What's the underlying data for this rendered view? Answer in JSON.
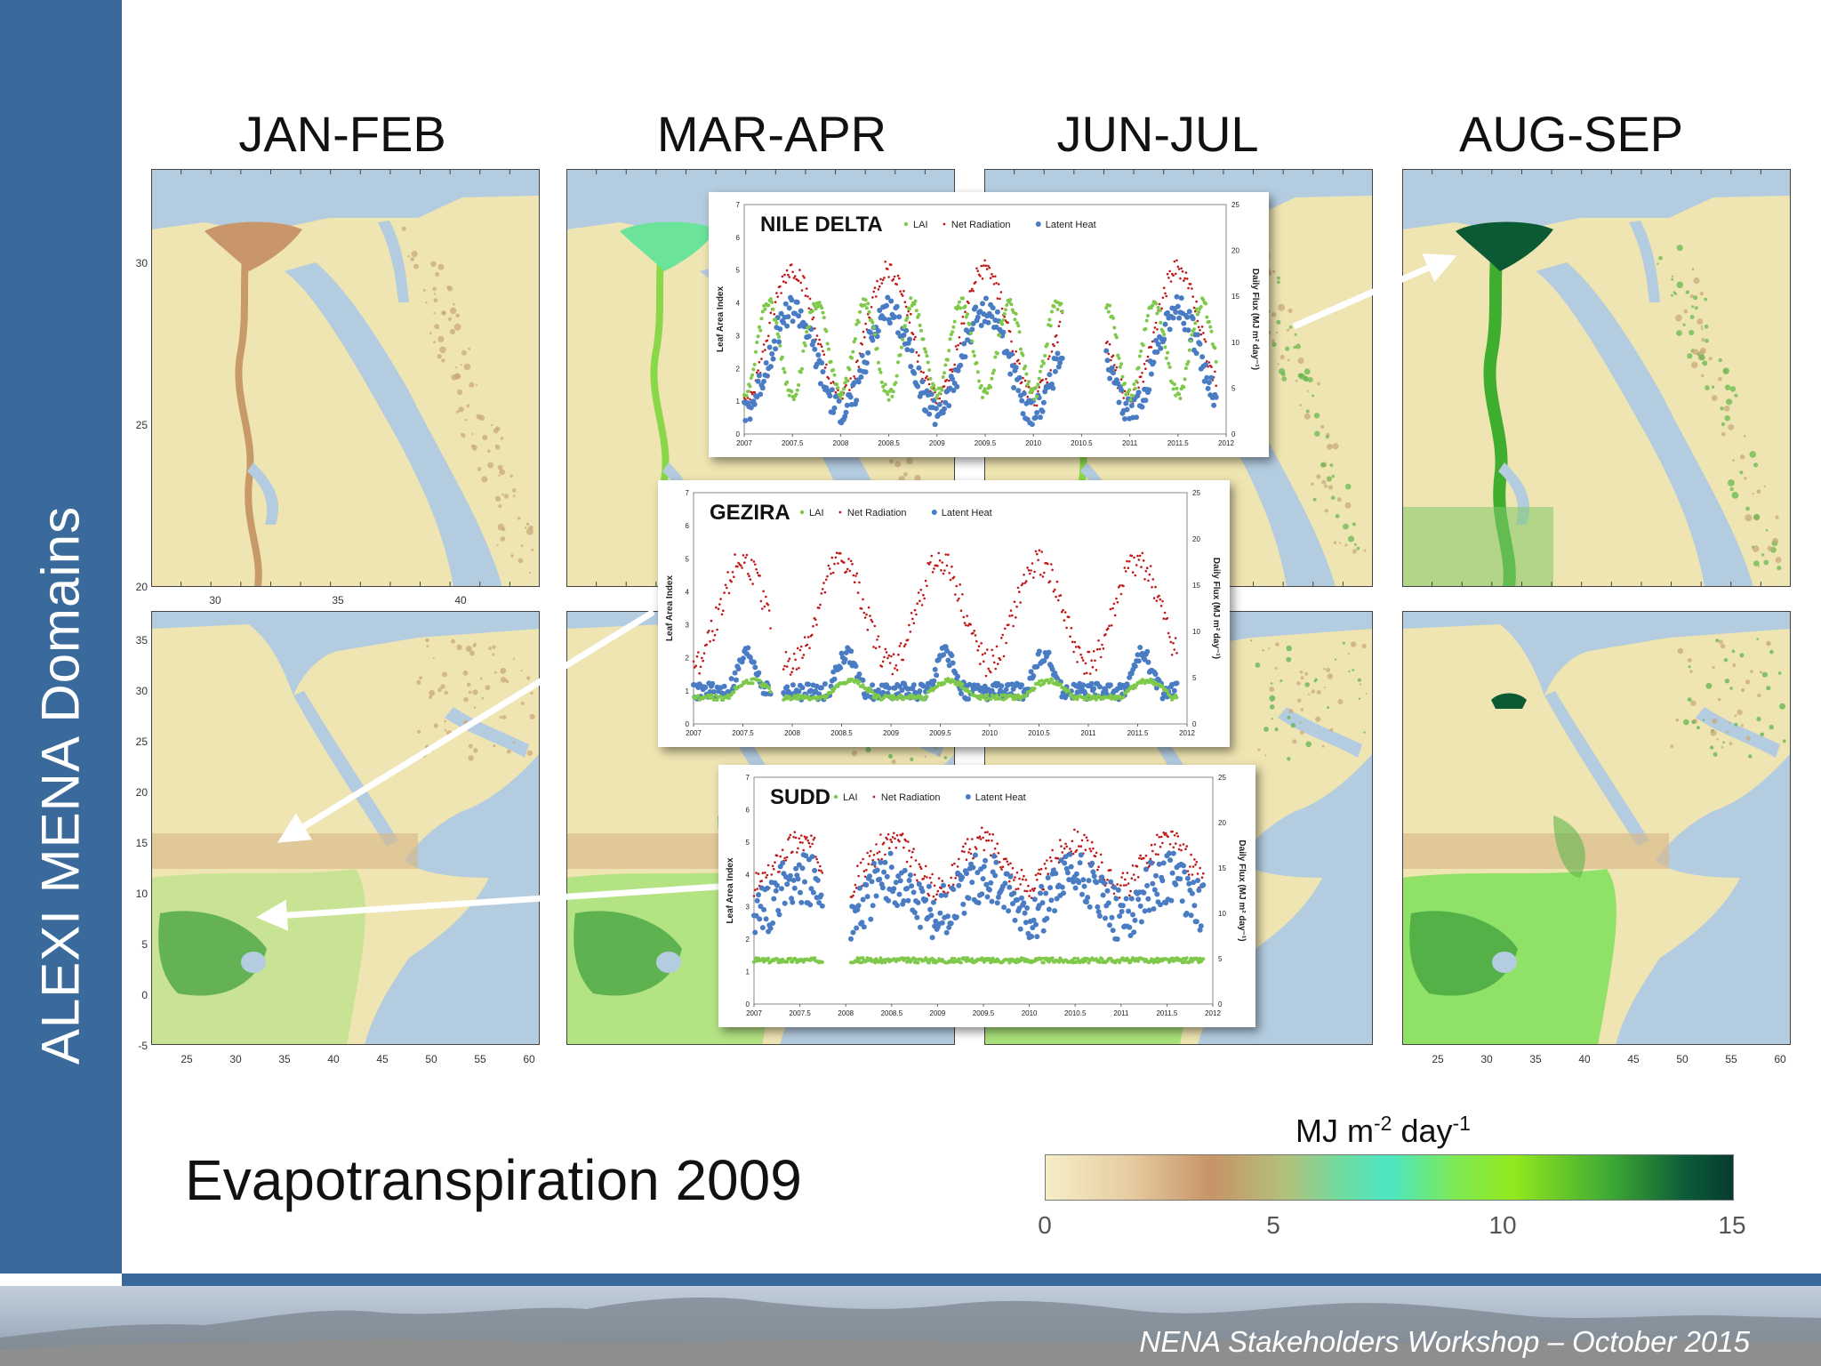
{
  "sidebar": {
    "title": "ALEXI MENA Domains"
  },
  "seasons": [
    "JAN-FEB",
    "MAR-APR",
    "JUN-JUL",
    "AUG-SEP"
  ],
  "main_label": "Evapotranspiration  2009",
  "colorbar": {
    "unit": "MJ m",
    "unit_exp1": "-2",
    "unit_mid": " day",
    "unit_exp2": "-1",
    "ticks": [
      "0",
      "5",
      "10",
      "15"
    ]
  },
  "footer": {
    "text": "NENA Stakeholders Workshop – October 2015"
  },
  "colors": {
    "sidebar": "#3a6a9c",
    "lai": "#7ec84a",
    "net_radiation": "#c01818",
    "latent_heat": "#4a7cc4"
  },
  "insets": [
    {
      "title": "NILE DELTA",
      "legend": [
        "LAI",
        "Net Radiation",
        "Latent Heat"
      ],
      "ylabel_left": "Leaf Area Index",
      "ylabel_right": "Daily Flux (MJ m² day⁻¹)",
      "x_ticks": [
        "2007",
        "2007.5",
        "2008",
        "2008.5",
        "2009",
        "2009.5",
        "2010",
        "2010.5",
        "2011",
        "2011.5",
        "2012"
      ],
      "y_left_ticks": [
        "0",
        "1",
        "2",
        "3",
        "4",
        "5",
        "6",
        "7"
      ],
      "y_right_ticks": [
        "0",
        "5",
        "10",
        "15",
        "20",
        "25"
      ]
    },
    {
      "title": "GEZIRA",
      "legend": [
        "LAI",
        "Net Radiation",
        "Latent Heat"
      ],
      "ylabel_left": "Leaf Area Index",
      "ylabel_right": "Daily Flux (MJ m² day⁻¹)",
      "x_ticks": [
        "2007",
        "2007.5",
        "2008",
        "2008.5",
        "2009",
        "2009.5",
        "2010",
        "2010.5",
        "2011",
        "2011.5",
        "2012"
      ],
      "y_left_ticks": [
        "0",
        "1",
        "2",
        "3",
        "4",
        "5",
        "6",
        "7"
      ],
      "y_right_ticks": [
        "0",
        "5",
        "10",
        "15",
        "20",
        "25"
      ]
    },
    {
      "title": "SUDD",
      "legend": [
        "LAI",
        "Net Radiation",
        "Latent Heat"
      ],
      "ylabel_left": "Leaf Area Index",
      "ylabel_right": "Daily Flux (MJ m² day⁻¹)",
      "x_ticks": [
        "2007",
        "2007.5",
        "2008",
        "2008.5",
        "2009",
        "2009.5",
        "2010",
        "2010.5",
        "2011",
        "2011.5",
        "2012"
      ],
      "y_left_ticks": [
        "0",
        "1",
        "2",
        "3",
        "4",
        "5",
        "6",
        "7"
      ],
      "y_right_ticks": [
        "0",
        "5",
        "10",
        "15",
        "20",
        "25"
      ]
    }
  ],
  "map_axes": {
    "top_x_ticks": [
      "30",
      "35",
      "40"
    ],
    "top_y_ticks": [
      "20",
      "25",
      "30"
    ],
    "bottom_x_ticks": [
      "25",
      "30",
      "35",
      "40",
      "45",
      "50",
      "55",
      "60"
    ],
    "bottom_y_ticks": [
      "-5",
      "0",
      "5",
      "10",
      "15",
      "20",
      "25",
      "30",
      "35"
    ]
  }
}
